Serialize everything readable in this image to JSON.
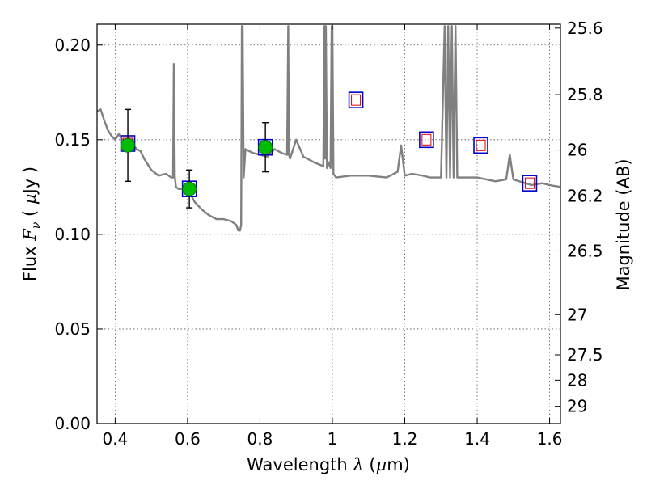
{
  "chart_data": {
    "type": "line",
    "title": "",
    "xlabel": {
      "prefix": "Wavelength  ",
      "symbol": "λ",
      "unit_open": " (",
      "unit": "μ",
      "unit_close": "m)"
    },
    "ylabel": {
      "prefix": "Flux  ",
      "symbol": "F",
      "sub": "ν",
      "unit_open": "  ( ",
      "unit": "μ",
      "unit_close": "Jy )"
    },
    "y2label": "Magnitude (AB)",
    "xlim": [
      0.35,
      1.63
    ],
    "ylim": [
      0.0,
      0.211
    ],
    "grid": true,
    "xticks": [
      0.4,
      0.6,
      0.8,
      1.0,
      1.2,
      1.4,
      1.6
    ],
    "xtick_labels": [
      "0.4",
      "0.6",
      "0.8",
      "1",
      "1.2",
      "1.4",
      "1.6"
    ],
    "yticks": [
      0.0,
      0.05,
      0.1,
      0.15,
      0.2
    ],
    "ytick_labels": [
      "0.00",
      "0.05",
      "0.10",
      "0.15",
      "0.20"
    ],
    "y2ticks": [
      25.6,
      25.8,
      26,
      26.2,
      26.5,
      27,
      27.5,
      28,
      29
    ],
    "y2tick_labels": [
      "25.6",
      "25.8",
      "26",
      "26.2",
      "26.5",
      "27",
      "27.5",
      "28",
      "29"
    ],
    "colors": {
      "spectrum": "#808080",
      "observed": "#00bb00",
      "model_box": "#0000cc",
      "model_inner": "#dd0000",
      "errorbar": "#000000"
    },
    "series": [
      {
        "kind": "spectrum",
        "x": [
          0.35,
          0.36,
          0.37,
          0.38,
          0.39,
          0.4,
          0.41,
          0.42,
          0.43,
          0.44,
          0.45,
          0.46,
          0.47,
          0.48,
          0.5,
          0.52,
          0.54,
          0.555,
          0.56,
          0.562,
          0.565,
          0.568,
          0.575,
          0.6,
          0.62,
          0.64,
          0.66,
          0.68,
          0.7,
          0.72,
          0.735,
          0.74,
          0.745,
          0.748,
          0.75,
          0.752,
          0.755,
          0.76,
          0.78,
          0.8,
          0.82,
          0.84,
          0.86,
          0.875,
          0.878,
          0.88,
          0.883,
          0.9,
          0.92,
          0.95,
          0.975,
          0.978,
          0.98,
          0.982,
          0.985,
          0.99,
          0.995,
          0.998,
          1.0,
          1.003,
          1.01,
          1.05,
          1.1,
          1.15,
          1.18,
          1.19,
          1.2,
          1.22,
          1.25,
          1.27,
          1.3,
          1.31,
          1.315,
          1.32,
          1.325,
          1.33,
          1.335,
          1.34,
          1.345,
          1.35,
          1.4,
          1.45,
          1.48,
          1.49,
          1.5,
          1.55,
          1.58,
          1.6,
          1.63
        ],
        "y": [
          0.165,
          0.166,
          0.16,
          0.155,
          0.152,
          0.15,
          0.153,
          0.15,
          0.148,
          0.146,
          0.147,
          0.145,
          0.144,
          0.14,
          0.134,
          0.131,
          0.132,
          0.13,
          0.13,
          0.19,
          0.13,
          0.125,
          0.124,
          0.124,
          0.117,
          0.113,
          0.11,
          0.108,
          0.108,
          0.107,
          0.105,
          0.102,
          0.102,
          0.105,
          0.21,
          0.21,
          0.13,
          0.145,
          0.143,
          0.142,
          0.141,
          0.145,
          0.143,
          0.142,
          0.21,
          0.142,
          0.14,
          0.15,
          0.141,
          0.138,
          0.136,
          0.21,
          0.14,
          0.21,
          0.135,
          0.138,
          0.135,
          0.21,
          0.21,
          0.132,
          0.13,
          0.131,
          0.131,
          0.13,
          0.133,
          0.147,
          0.131,
          0.132,
          0.131,
          0.13,
          0.13,
          0.21,
          0.13,
          0.21,
          0.13,
          0.21,
          0.13,
          0.21,
          0.13,
          0.13,
          0.13,
          0.128,
          0.129,
          0.142,
          0.129,
          0.126,
          0.127,
          0.126,
          0.125
        ]
      },
      {
        "kind": "observed",
        "x": [
          0.435,
          0.605,
          0.815
        ],
        "y": [
          0.147,
          0.124,
          0.146
        ],
        "err": [
          0.019,
          0.01,
          0.013
        ]
      },
      {
        "kind": "model",
        "x": [
          0.435,
          0.605,
          0.815,
          1.065,
          1.26,
          1.41,
          1.545
        ],
        "y": [
          0.148,
          0.124,
          0.146,
          0.171,
          0.15,
          0.147,
          0.127
        ]
      }
    ]
  }
}
